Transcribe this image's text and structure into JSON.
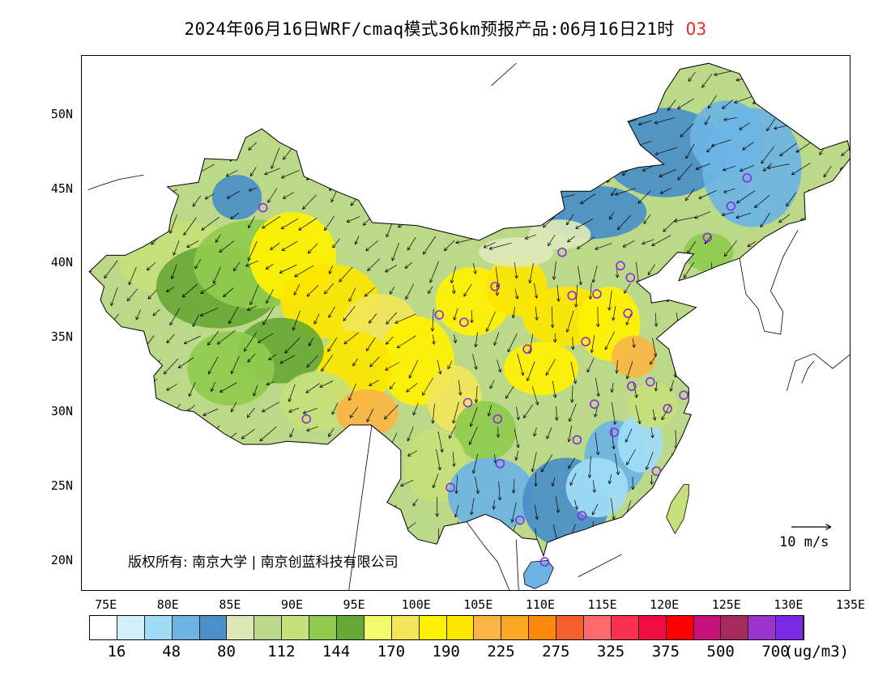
{
  "title": {
    "main": "2024年06月16日WRF/cmaq模式36km预报产品:06月16日21时",
    "pollutant": "O3"
  },
  "axes": {
    "lat_labels": [
      "50N",
      "45N",
      "40N",
      "35N",
      "30N",
      "25N",
      "20N"
    ],
    "lat_values": [
      50,
      45,
      40,
      35,
      30,
      25,
      20
    ],
    "lon_labels": [
      "75E",
      "80E",
      "85E",
      "90E",
      "95E",
      "100E",
      "105E",
      "110E",
      "115E",
      "120E",
      "125E",
      "130E",
      "135E"
    ],
    "lon_values": [
      75,
      80,
      85,
      90,
      95,
      100,
      105,
      110,
      115,
      120,
      125,
      130,
      135
    ]
  },
  "copyright": "版权所有: 南京大学 | 南京创蓝科技有限公司",
  "wind_scale": {
    "label": "10 m/s"
  },
  "colorbar": {
    "colors": [
      "#ffffff",
      "#d2effc",
      "#a0dcf6",
      "#6db4e4",
      "#4a8fc7",
      "#dde8b8",
      "#bcd98a",
      "#c6e07a",
      "#8fcb4e",
      "#68a836",
      "#f2fb6a",
      "#f2e65a",
      "#fff200",
      "#fde600",
      "#f9b545",
      "#fca827",
      "#fd8a0a",
      "#f3602e",
      "#fe6a6d",
      "#f8324e",
      "#f20d41",
      "#fe0000",
      "#c6127a",
      "#a52b5c",
      "#9b33cd",
      "#7c29e6"
    ],
    "labels": [
      "16",
      "48",
      "80",
      "112",
      "144",
      "170",
      "190",
      "225",
      "275",
      "325",
      "375",
      "500",
      "700"
    ],
    "unit": "(ug/m3)"
  },
  "stations": [
    {
      "lon": 87.6,
      "lat": 43.8
    },
    {
      "lon": 91.1,
      "lat": 29.6
    },
    {
      "lon": 101.8,
      "lat": 36.6
    },
    {
      "lon": 103.8,
      "lat": 36.1
    },
    {
      "lon": 106.3,
      "lat": 38.5
    },
    {
      "lon": 104.1,
      "lat": 30.7
    },
    {
      "lon": 102.7,
      "lat": 25.0
    },
    {
      "lon": 106.7,
      "lat": 26.6
    },
    {
      "lon": 106.5,
      "lat": 29.6
    },
    {
      "lon": 108.9,
      "lat": 34.3
    },
    {
      "lon": 111.7,
      "lat": 40.8
    },
    {
      "lon": 112.5,
      "lat": 37.9
    },
    {
      "lon": 113.6,
      "lat": 34.8
    },
    {
      "lon": 114.5,
      "lat": 38.0
    },
    {
      "lon": 116.4,
      "lat": 39.9
    },
    {
      "lon": 117.2,
      "lat": 39.1
    },
    {
      "lon": 117.0,
      "lat": 36.7
    },
    {
      "lon": 117.3,
      "lat": 31.8
    },
    {
      "lon": 118.8,
      "lat": 32.1
    },
    {
      "lon": 121.5,
      "lat": 31.2
    },
    {
      "lon": 120.2,
      "lat": 30.3
    },
    {
      "lon": 114.3,
      "lat": 30.6
    },
    {
      "lon": 112.9,
      "lat": 28.2
    },
    {
      "lon": 115.9,
      "lat": 28.7
    },
    {
      "lon": 119.3,
      "lat": 26.1
    },
    {
      "lon": 113.3,
      "lat": 23.1
    },
    {
      "lon": 108.3,
      "lat": 22.8
    },
    {
      "lon": 110.3,
      "lat": 20.0
    },
    {
      "lon": 123.4,
      "lat": 41.8
    },
    {
      "lon": 125.3,
      "lat": 43.9
    },
    {
      "lon": 126.6,
      "lat": 45.8
    }
  ]
}
